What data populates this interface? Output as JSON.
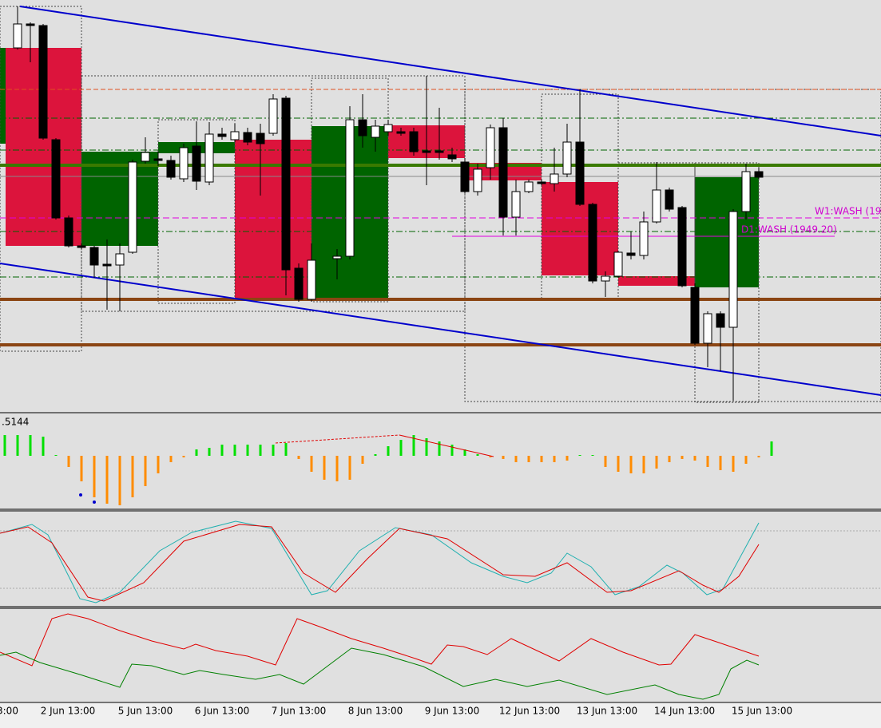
{
  "indicator_value": ".5144",
  "level_labels": [
    "W1:WASH (19",
    "D1:WASH (1949.20)"
  ],
  "x_axis_labels": [
    "3:00",
    "2 Jun 13:00",
    "5 Jun 13:00",
    "6 Jun 13:00",
    "7 Jun 13:00",
    "8 Jun 13:00",
    "9 Jun 13:00",
    "12 Jun 13:00",
    "13 Jun 13:00",
    "14 Jun 13:00",
    "15 Jun 13:00"
  ]
}
